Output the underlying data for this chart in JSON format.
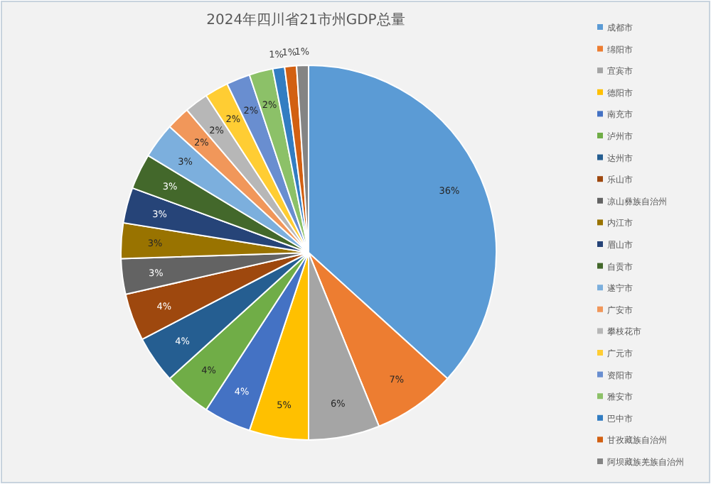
{
  "chart_data": {
    "type": "pie",
    "title": "2024年四川省21市州GDP总量",
    "legend": "right",
    "value_labels": [
      "36%",
      "7%",
      "6%",
      "5%",
      "4%",
      "4%",
      "4%",
      "4%",
      "3%",
      "3%",
      "3%",
      "3%",
      "3%",
      "2%",
      "2%",
      "2%",
      "2%",
      "2%",
      "1%",
      "1%",
      "1%"
    ],
    "categories": [
      "成都市",
      "绵阳市",
      "宜宾市",
      "德阳市",
      "南充市",
      "泸州市",
      "达州市",
      "乐山市",
      "凉山彝族自治州",
      "内江市",
      "眉山市",
      "自贡市",
      "遂宁市",
      "广安市",
      "攀枝花市",
      "广元市",
      "资阳市",
      "雅安市",
      "巴中市",
      "甘孜藏族自治州",
      "阿坝藏族羌族自治州"
    ],
    "values": [
      36,
      7,
      6,
      5,
      4,
      4,
      4,
      4,
      3,
      3,
      3,
      3,
      3,
      2,
      2,
      2,
      2,
      2,
      1,
      1,
      1
    ],
    "colors": [
      "#5b9bd5",
      "#ed7d31",
      "#a5a5a5",
      "#ffc000",
      "#4472c4",
      "#70ad47",
      "#255e91",
      "#9e480e",
      "#636363",
      "#997300",
      "#264478",
      "#43682b",
      "#7cafdd",
      "#f1975a",
      "#b7b7b7",
      "#ffcd33",
      "#698ed0",
      "#8cc168",
      "#327dc2",
      "#d26012",
      "#848484"
    ]
  }
}
